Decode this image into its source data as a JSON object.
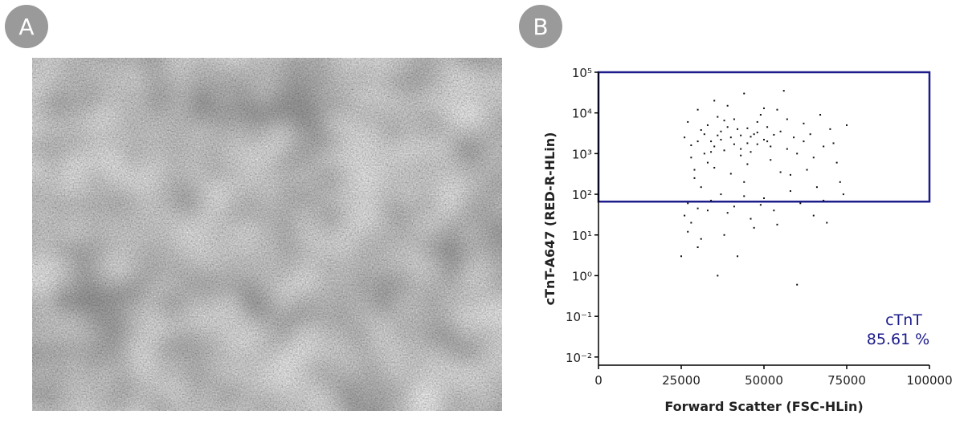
{
  "panel_labels": [
    "A",
    "B"
  ],
  "chart_data": {
    "type": "scatter",
    "xlabel": "Forward Scatter (FSC-HLin)",
    "ylabel": "cTnT-A647 (RED-R-HLin)",
    "xlim": [
      0,
      100000
    ],
    "ylim": [
      0.0063,
      100000
    ],
    "yscale": "log",
    "xticks": [
      0,
      25000,
      50000,
      75000,
      100000
    ],
    "yticks": [
      {
        "value": 0.01,
        "label": "10⁻²"
      },
      {
        "value": 0.1,
        "label": "10⁻¹"
      },
      {
        "value": 1,
        "label": "10⁰"
      },
      {
        "value": 10,
        "label": "10¹"
      },
      {
        "value": 100,
        "label": "10²"
      },
      {
        "value": 1000,
        "label": "10³"
      },
      {
        "value": 10000,
        "label": "10⁴"
      },
      {
        "value": 100000,
        "label": "10⁵"
      }
    ],
    "color": "#111111",
    "gate": {
      "name": "cTnT",
      "label": "85.61 %",
      "y_min": 66,
      "color": "#1c1c8c"
    },
    "x": [
      30000,
      32000,
      35000,
      28000,
      40000,
      42000,
      45000,
      38000,
      33000,
      36000,
      47000,
      50000,
      52000,
      55000,
      48000,
      43000,
      29000,
      31000,
      27000,
      26000,
      28000,
      30000,
      34000,
      37000,
      41000,
      44000,
      46000,
      50000,
      53000,
      58000,
      60000,
      62000,
      65000,
      68000,
      70000,
      72000,
      75000,
      57000,
      54000,
      49000,
      39000,
      35000,
      44000,
      56000,
      30000,
      27000,
      26000,
      33000,
      37000,
      41000,
      46000,
      51000,
      59000,
      63000,
      66000,
      69000,
      61000,
      47000,
      38000,
      31000,
      25000,
      42000,
      36000,
      60000,
      29000,
      34000,
      39000,
      43000,
      48000,
      52000,
      55000,
      58000,
      64000,
      67000,
      73000,
      40000,
      45000,
      50000,
      35000,
      28000,
      32000,
      37000,
      46000,
      53000,
      57000,
      62000,
      71000,
      33000,
      39000,
      44000,
      49000,
      54000,
      27000,
      30000,
      65000,
      68000,
      74000,
      36000,
      41000,
      43000,
      38000,
      45000,
      48000,
      51000,
      31000,
      34000
    ],
    "values": [
      2000,
      3000,
      1500,
      800,
      2500,
      4000,
      1800,
      1200,
      5000,
      8000,
      3000,
      2200,
      1500,
      3500,
      6000,
      900,
      400,
      150,
      60,
      30,
      20,
      45,
      70,
      100,
      50,
      200,
      25,
      80,
      40,
      300,
      1000,
      2000,
      800,
      1500,
      4000,
      600,
      5000,
      7000,
      12000,
      9000,
      15000,
      20000,
      30000,
      35000,
      12000,
      6000,
      2500,
      600,
      3500,
      7000,
      1100,
      4500,
      2500,
      400,
      150,
      20,
      60,
      15,
      10,
      8,
      3,
      3,
      1,
      0.6,
      250,
      2000,
      4500,
      2800,
      1700,
      700,
      350,
      120,
      3000,
      9000,
      200,
      320,
      550,
      13000,
      450,
      1600,
      1000,
      2200,
      2600,
      2900,
      1300,
      5500,
      1800,
      40,
      35,
      90,
      55,
      18,
      12,
      5,
      30,
      70,
      100,
      2800,
      1700,
      1300,
      6500,
      4200,
      3300,
      2000,
      3800,
      1100
    ]
  }
}
